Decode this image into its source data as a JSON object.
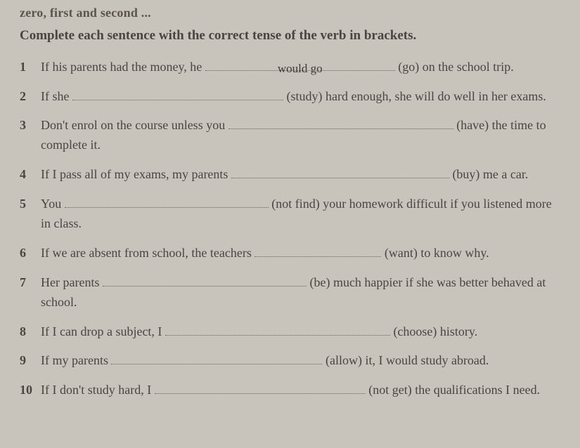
{
  "cutoff_text": "zero, first and second ...",
  "instruction": "Complete each sentence with the correct tense of the verb in brackets.",
  "items": [
    {
      "num": "1",
      "pre": "If his parents had the money, he ",
      "blank_width": 270,
      "answer": "would go",
      "post": " (go) on the school trip."
    },
    {
      "num": "2",
      "pre": "If she ",
      "blank_width": 300,
      "answer": "",
      "post": " (study) hard enough, she will do well in her exams."
    },
    {
      "num": "3",
      "pre": "Don't enrol on the course unless you ",
      "blank_width": 320,
      "answer": "",
      "post": " (have) the time to complete it."
    },
    {
      "num": "4",
      "pre": "If I pass all of my exams, my parents ",
      "blank_width": 310,
      "answer": "",
      "post": " (buy) me a car."
    },
    {
      "num": "5",
      "pre": "You ",
      "blank_width": 290,
      "answer": "",
      "post": " (not find) your homework difficult if you listened more in class."
    },
    {
      "num": "6",
      "pre": "If we are absent from school, the teachers ",
      "blank_width": 180,
      "answer": "",
      "post": " (want) to know why."
    },
    {
      "num": "7",
      "pre": "Her parents ",
      "blank_width": 290,
      "answer": "",
      "post": " (be) much happier if she was better behaved at school."
    },
    {
      "num": "8",
      "pre": "If I can drop a subject, I ",
      "blank_width": 320,
      "answer": "",
      "post": " (choose) history."
    },
    {
      "num": "9",
      "pre": "If my parents ",
      "blank_width": 300,
      "answer": "",
      "post": " (allow) it, I would study abroad."
    },
    {
      "num": "10",
      "pre": "If I don't study hard, I ",
      "blank_width": 300,
      "answer": "",
      "post": " (not get) the qualifications I need."
    }
  ]
}
